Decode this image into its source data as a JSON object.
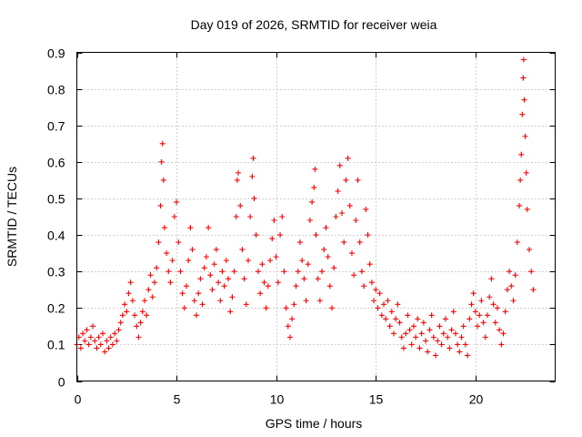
{
  "chart_data": {
    "type": "scatter",
    "title": "Day 019 of 2026, SRMTID for receiver weia",
    "xlabel": "GPS time / hours",
    "ylabel": "SRMTID / TECUs",
    "xlim": [
      0,
      24
    ],
    "ylim": [
      0,
      0.9
    ],
    "x_ticks": [
      0,
      5,
      10,
      15,
      20
    ],
    "x_tick_labels": [
      "0",
      "5",
      "10",
      "15",
      "20"
    ],
    "y_ticks": [
      0,
      0.1,
      0.2,
      0.3,
      0.4,
      0.5,
      0.6,
      0.7,
      0.8,
      0.9
    ],
    "y_tick_labels": [
      "0",
      "0.1",
      "0.2",
      "0.3",
      "0.4",
      "0.5",
      "0.6",
      "0.7",
      "0.8",
      "0.9"
    ],
    "grid": true,
    "marker": "+",
    "color": "#ff0000",
    "series": [
      {
        "name": "SRMTID",
        "points": [
          [
            0.0,
            0.1
          ],
          [
            0.1,
            0.12
          ],
          [
            0.2,
            0.09
          ],
          [
            0.3,
            0.13
          ],
          [
            0.4,
            0.11
          ],
          [
            0.5,
            0.14
          ],
          [
            0.6,
            0.1
          ],
          [
            0.7,
            0.12
          ],
          [
            0.8,
            0.15
          ],
          [
            0.9,
            0.11
          ],
          [
            1.0,
            0.09
          ],
          [
            1.1,
            0.12
          ],
          [
            1.2,
            0.1
          ],
          [
            1.3,
            0.13
          ],
          [
            1.4,
            0.08
          ],
          [
            1.5,
            0.11
          ],
          [
            1.6,
            0.09
          ],
          [
            1.7,
            0.12
          ],
          [
            1.8,
            0.1
          ],
          [
            1.9,
            0.13
          ],
          [
            2.0,
            0.11
          ],
          [
            2.1,
            0.14
          ],
          [
            2.2,
            0.16
          ],
          [
            2.3,
            0.18
          ],
          [
            2.4,
            0.21
          ],
          [
            2.5,
            0.19
          ],
          [
            2.6,
            0.24
          ],
          [
            2.7,
            0.27
          ],
          [
            2.8,
            0.22
          ],
          [
            2.9,
            0.18
          ],
          [
            3.0,
            0.15
          ],
          [
            3.1,
            0.12
          ],
          [
            3.2,
            0.16
          ],
          [
            3.3,
            0.19
          ],
          [
            3.4,
            0.22
          ],
          [
            3.5,
            0.18
          ],
          [
            3.6,
            0.25
          ],
          [
            3.7,
            0.29
          ],
          [
            3.8,
            0.23
          ],
          [
            3.9,
            0.27
          ],
          [
            4.0,
            0.31
          ],
          [
            4.1,
            0.38
          ],
          [
            4.2,
            0.48
          ],
          [
            4.25,
            0.6
          ],
          [
            4.3,
            0.65
          ],
          [
            4.35,
            0.55
          ],
          [
            4.4,
            0.42
          ],
          [
            4.5,
            0.35
          ],
          [
            4.6,
            0.3
          ],
          [
            4.7,
            0.27
          ],
          [
            4.8,
            0.33
          ],
          [
            4.9,
            0.45
          ],
          [
            5.0,
            0.49
          ],
          [
            5.1,
            0.38
          ],
          [
            5.2,
            0.3
          ],
          [
            5.3,
            0.24
          ],
          [
            5.4,
            0.2
          ],
          [
            5.5,
            0.26
          ],
          [
            5.6,
            0.33
          ],
          [
            5.7,
            0.42
          ],
          [
            5.8,
            0.36
          ],
          [
            5.9,
            0.22
          ],
          [
            6.0,
            0.18
          ],
          [
            6.1,
            0.24
          ],
          [
            6.2,
            0.28
          ],
          [
            6.3,
            0.21
          ],
          [
            6.4,
            0.31
          ],
          [
            6.5,
            0.34
          ],
          [
            6.6,
            0.42
          ],
          [
            6.7,
            0.29
          ],
          [
            6.8,
            0.25
          ],
          [
            6.9,
            0.32
          ],
          [
            7.0,
            0.36
          ],
          [
            7.1,
            0.27
          ],
          [
            7.2,
            0.22
          ],
          [
            7.3,
            0.3
          ],
          [
            7.4,
            0.26
          ],
          [
            7.5,
            0.33
          ],
          [
            7.6,
            0.28
          ],
          [
            7.7,
            0.19
          ],
          [
            7.8,
            0.23
          ],
          [
            7.9,
            0.3
          ],
          [
            8.0,
            0.45
          ],
          [
            8.05,
            0.55
          ],
          [
            8.1,
            0.57
          ],
          [
            8.2,
            0.48
          ],
          [
            8.3,
            0.36
          ],
          [
            8.4,
            0.28
          ],
          [
            8.5,
            0.21
          ],
          [
            8.6,
            0.33
          ],
          [
            8.7,
            0.45
          ],
          [
            8.8,
            0.56
          ],
          [
            8.85,
            0.61
          ],
          [
            8.9,
            0.5
          ],
          [
            9.0,
            0.4
          ],
          [
            9.1,
            0.3
          ],
          [
            9.2,
            0.24
          ],
          [
            9.3,
            0.32
          ],
          [
            9.4,
            0.27
          ],
          [
            9.5,
            0.2
          ],
          [
            9.6,
            0.26
          ],
          [
            9.7,
            0.33
          ],
          [
            9.8,
            0.39
          ],
          [
            9.9,
            0.44
          ],
          [
            10.0,
            0.34
          ],
          [
            10.1,
            0.27
          ],
          [
            10.2,
            0.4
          ],
          [
            10.3,
            0.45
          ],
          [
            10.4,
            0.3
          ],
          [
            10.5,
            0.2
          ],
          [
            10.6,
            0.15
          ],
          [
            10.7,
            0.12
          ],
          [
            10.8,
            0.17
          ],
          [
            10.9,
            0.21
          ],
          [
            11.0,
            0.26
          ],
          [
            11.1,
            0.3
          ],
          [
            11.2,
            0.38
          ],
          [
            11.3,
            0.33
          ],
          [
            11.4,
            0.28
          ],
          [
            11.5,
            0.22
          ],
          [
            11.6,
            0.32
          ],
          [
            11.7,
            0.44
          ],
          [
            11.8,
            0.49
          ],
          [
            11.9,
            0.53
          ],
          [
            11.95,
            0.58
          ],
          [
            12.0,
            0.4
          ],
          [
            12.1,
            0.28
          ],
          [
            12.2,
            0.22
          ],
          [
            12.3,
            0.3
          ],
          [
            12.4,
            0.36
          ],
          [
            12.5,
            0.42
          ],
          [
            12.6,
            0.34
          ],
          [
            12.7,
            0.26
          ],
          [
            12.8,
            0.2
          ],
          [
            12.9,
            0.31
          ],
          [
            13.0,
            0.45
          ],
          [
            13.1,
            0.52
          ],
          [
            13.2,
            0.59
          ],
          [
            13.3,
            0.46
          ],
          [
            13.4,
            0.38
          ],
          [
            13.5,
            0.55
          ],
          [
            13.6,
            0.61
          ],
          [
            13.7,
            0.48
          ],
          [
            13.8,
            0.35
          ],
          [
            13.9,
            0.29
          ],
          [
            14.0,
            0.44
          ],
          [
            14.1,
            0.55
          ],
          [
            14.2,
            0.38
          ],
          [
            14.3,
            0.3
          ],
          [
            14.4,
            0.26
          ],
          [
            14.5,
            0.47
          ],
          [
            14.6,
            0.4
          ],
          [
            14.7,
            0.32
          ],
          [
            14.8,
            0.27
          ],
          [
            14.9,
            0.22
          ],
          [
            15.0,
            0.25
          ],
          [
            15.1,
            0.2
          ],
          [
            15.2,
            0.24
          ],
          [
            15.3,
            0.18
          ],
          [
            15.4,
            0.21
          ],
          [
            15.5,
            0.17
          ],
          [
            15.6,
            0.22
          ],
          [
            15.7,
            0.15
          ],
          [
            15.8,
            0.19
          ],
          [
            15.9,
            0.13
          ],
          [
            16.0,
            0.17
          ],
          [
            16.1,
            0.21
          ],
          [
            16.2,
            0.16
          ],
          [
            16.3,
            0.12
          ],
          [
            16.4,
            0.09
          ],
          [
            16.5,
            0.13
          ],
          [
            16.6,
            0.18
          ],
          [
            16.7,
            0.14
          ],
          [
            16.8,
            0.1
          ],
          [
            16.9,
            0.15
          ],
          [
            17.0,
            0.12
          ],
          [
            17.1,
            0.17
          ],
          [
            17.2,
            0.09
          ],
          [
            17.3,
            0.13
          ],
          [
            17.4,
            0.16
          ],
          [
            17.5,
            0.11
          ],
          [
            17.6,
            0.08
          ],
          [
            17.7,
            0.14
          ],
          [
            17.8,
            0.18
          ],
          [
            17.9,
            0.12
          ],
          [
            18.0,
            0.07
          ],
          [
            18.1,
            0.11
          ],
          [
            18.2,
            0.15
          ],
          [
            18.3,
            0.1
          ],
          [
            18.4,
            0.13
          ],
          [
            18.5,
            0.17
          ],
          [
            18.6,
            0.12
          ],
          [
            18.7,
            0.09
          ],
          [
            18.8,
            0.14
          ],
          [
            18.9,
            0.19
          ],
          [
            19.0,
            0.13
          ],
          [
            19.1,
            0.1
          ],
          [
            19.2,
            0.08
          ],
          [
            19.3,
            0.12
          ],
          [
            19.4,
            0.15
          ],
          [
            19.5,
            0.1
          ],
          [
            19.6,
            0.07
          ],
          [
            19.7,
            0.17
          ],
          [
            19.8,
            0.21
          ],
          [
            19.9,
            0.24
          ],
          [
            20.0,
            0.19
          ],
          [
            20.1,
            0.15
          ],
          [
            20.2,
            0.18
          ],
          [
            20.3,
            0.22
          ],
          [
            20.4,
            0.16
          ],
          [
            20.5,
            0.12
          ],
          [
            20.6,
            0.18
          ],
          [
            20.7,
            0.23
          ],
          [
            20.8,
            0.28
          ],
          [
            20.9,
            0.21
          ],
          [
            21.0,
            0.16
          ],
          [
            21.1,
            0.2
          ],
          [
            21.2,
            0.14
          ],
          [
            21.3,
            0.1
          ],
          [
            21.4,
            0.13
          ],
          [
            21.5,
            0.19
          ],
          [
            21.6,
            0.25
          ],
          [
            21.7,
            0.3
          ],
          [
            21.8,
            0.26
          ],
          [
            21.9,
            0.22
          ],
          [
            22.0,
            0.29
          ],
          [
            22.1,
            0.38
          ],
          [
            22.2,
            0.48
          ],
          [
            22.25,
            0.55
          ],
          [
            22.3,
            0.62
          ],
          [
            22.35,
            0.73
          ],
          [
            22.4,
            0.83
          ],
          [
            22.42,
            0.88
          ],
          [
            22.45,
            0.77
          ],
          [
            22.5,
            0.67
          ],
          [
            22.55,
            0.57
          ],
          [
            22.6,
            0.47
          ],
          [
            22.7,
            0.36
          ],
          [
            22.8,
            0.3
          ],
          [
            22.9,
            0.25
          ]
        ]
      }
    ]
  }
}
